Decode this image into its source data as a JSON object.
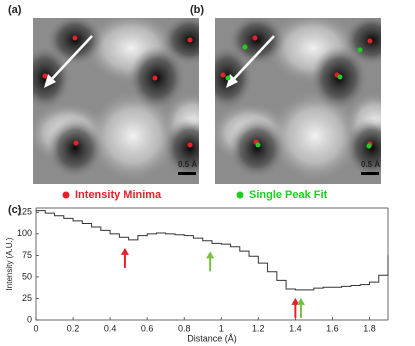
{
  "panels": [
    {
      "label": "(a)",
      "scale_bar": "0.5 Å"
    },
    {
      "label": "(b)",
      "scale_bar": "0.5 Å"
    }
  ],
  "legend": [
    {
      "label": "Intensity Minima",
      "color": "#e8202a"
    },
    {
      "label": "Single Peak Fit",
      "color": "#22cc22"
    }
  ],
  "chart_data": {
    "type": "line",
    "panel_label": "(c)",
    "x_label": "Distance (Å)",
    "y_label": "Intensity (A.U.)",
    "step": true,
    "x": [
      0,
      0.05,
      0.1,
      0.15,
      0.2,
      0.25,
      0.3,
      0.35,
      0.4,
      0.45,
      0.5,
      0.55,
      0.6,
      0.65,
      0.7,
      0.75,
      0.8,
      0.85,
      0.9,
      0.95,
      1.0,
      1.05,
      1.1,
      1.15,
      1.2,
      1.25,
      1.3,
      1.35,
      1.4,
      1.45,
      1.5,
      1.55,
      1.6,
      1.65,
      1.7,
      1.75,
      1.8,
      1.85,
      1.9
    ],
    "series": [
      {
        "color": "#333333",
        "values": [
          127,
          124,
          121,
          118,
          115,
          112,
          108,
          104,
          100,
          96,
          93,
          98,
          100,
          101,
          100,
          99,
          98,
          95,
          92,
          89,
          88,
          85,
          80,
          74,
          66,
          56,
          46,
          36,
          35,
          35,
          37,
          38,
          38,
          39,
          40,
          41,
          44,
          52,
          75
        ]
      }
    ],
    "xlim": [
      0,
      1.9
    ],
    "ylim": [
      0,
      130
    ],
    "xticks": [
      0,
      0.2,
      0.4,
      0.6,
      0.8,
      1,
      1.2,
      1.4,
      1.6,
      1.8
    ],
    "yticks": [
      0,
      25,
      50,
      75,
      100,
      125
    ],
    "annotations": [
      {
        "x": 0.48,
        "color": "#e8202a"
      },
      {
        "x": 0.94,
        "color": "#77c043"
      },
      {
        "x": 1.4,
        "color": "#e8202a"
      },
      {
        "x": 1.43,
        "color": "#77c043"
      }
    ]
  }
}
